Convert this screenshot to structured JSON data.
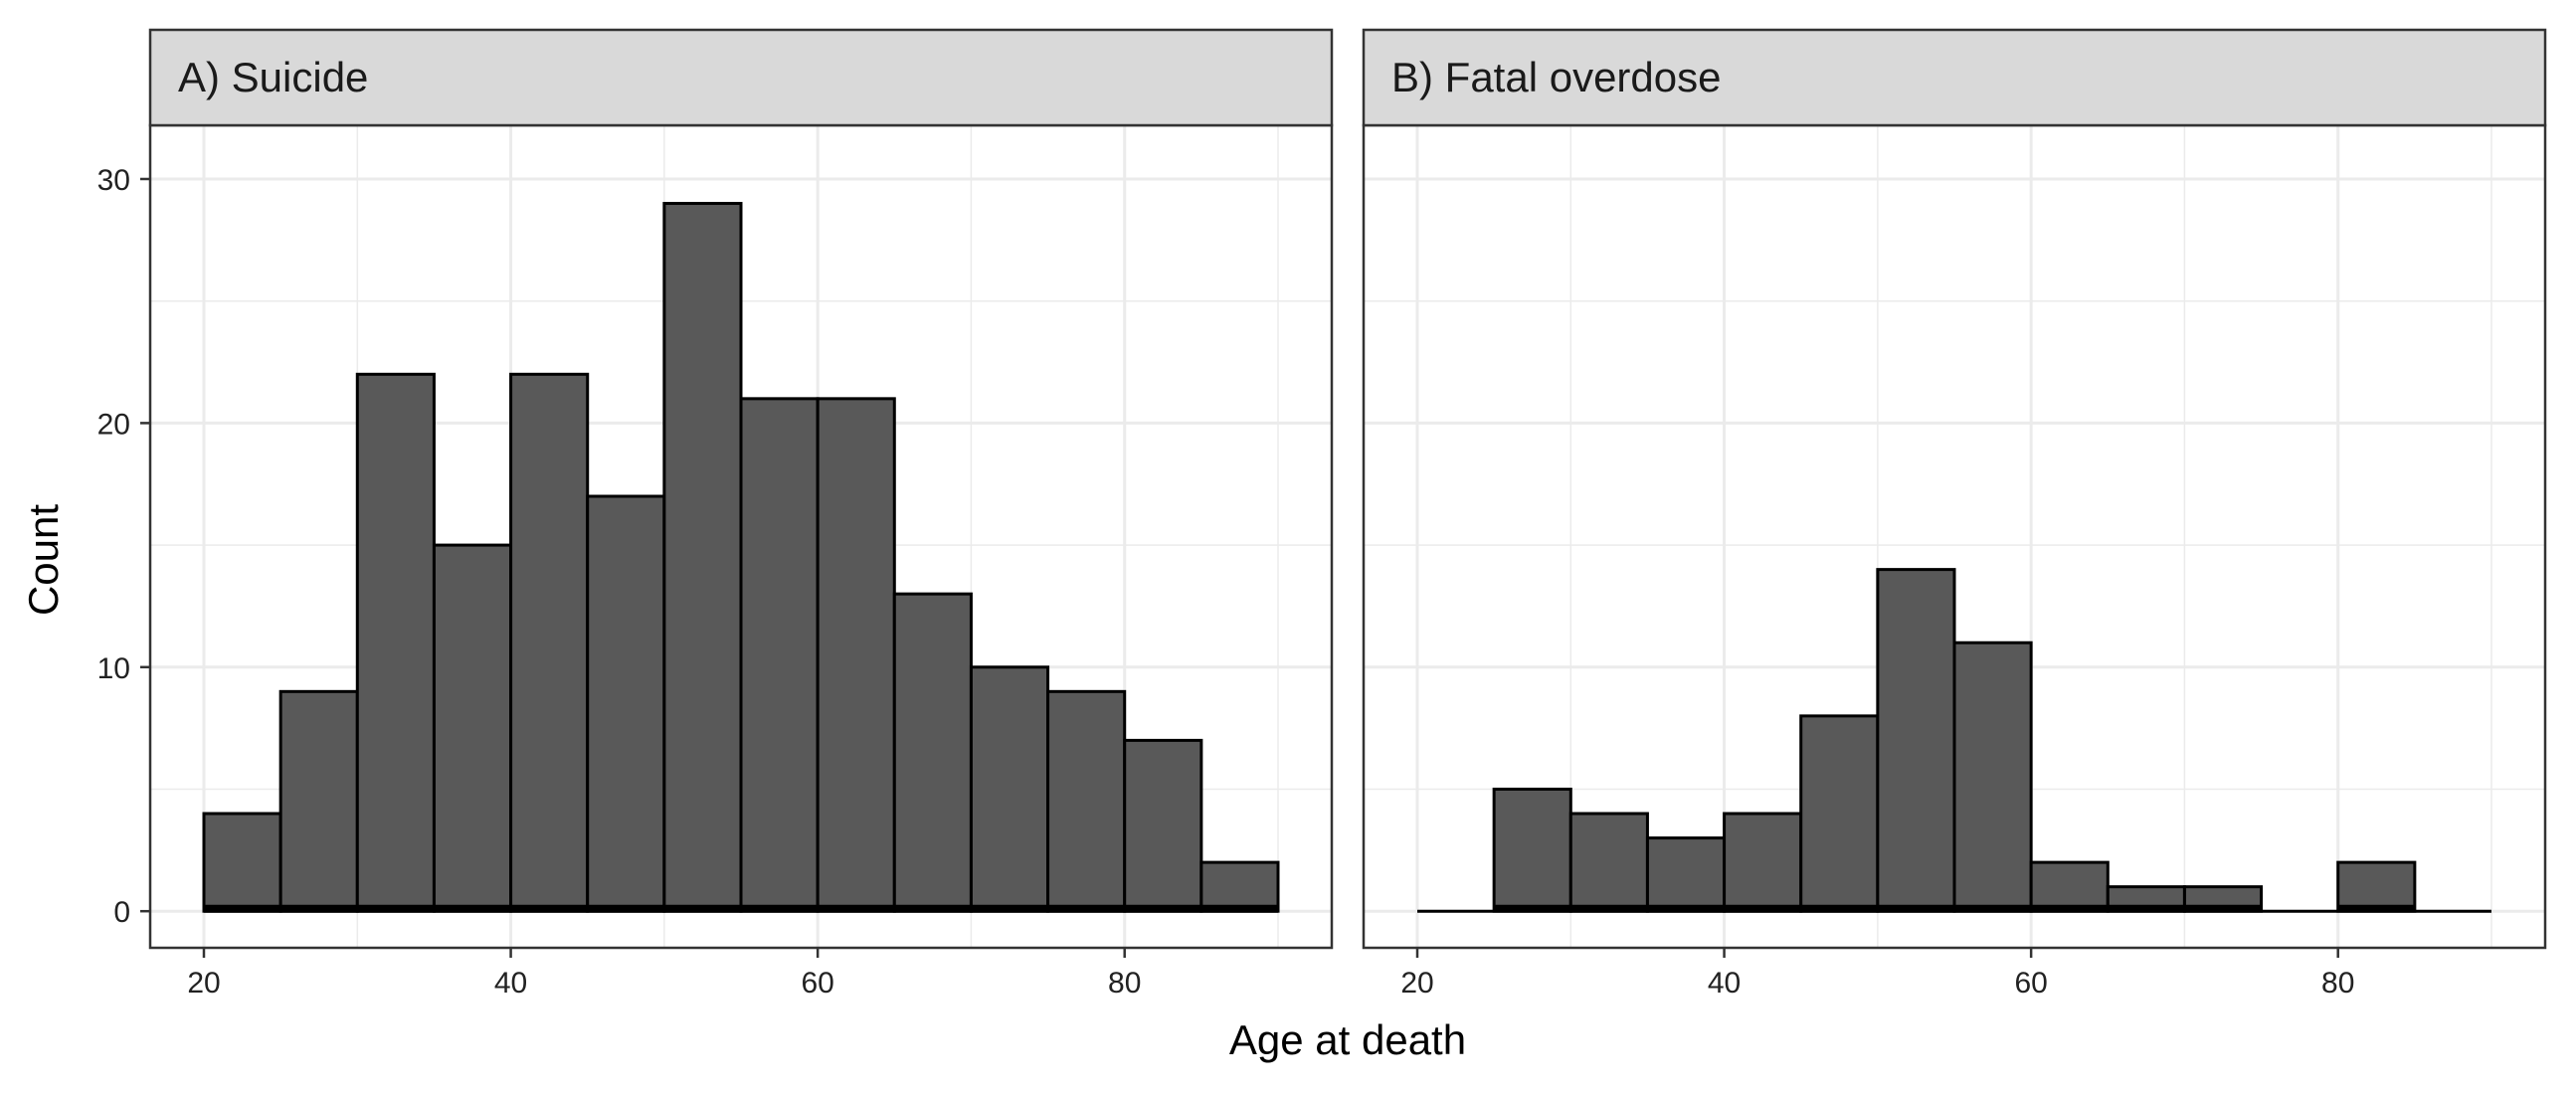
{
  "chart_data": {
    "type": "bar",
    "xlabel": "Age at death",
    "ylabel": "Count",
    "xlim": [
      16.5,
      93.5
    ],
    "ylim": [
      -1.5,
      32.2
    ],
    "x_ticks": [
      "20",
      "40",
      "60",
      "80"
    ],
    "y_ticks": [
      "0",
      "10",
      "20",
      "30"
    ],
    "x_tick_values": [
      20,
      40,
      60,
      80
    ],
    "y_tick_values": [
      0,
      10,
      20,
      30
    ],
    "bin_width": 5,
    "grid": true,
    "colors": {
      "fill": "#595959",
      "outline": "#000000",
      "panel_border": "#333333",
      "strip_fill": "#d9d9d9",
      "grid": "#ebebeb"
    },
    "panels": [
      {
        "title": "A) Suicide",
        "bins": [
          {
            "start": 20,
            "value": 4
          },
          {
            "start": 25,
            "value": 9
          },
          {
            "start": 30,
            "value": 22
          },
          {
            "start": 35,
            "value": 15
          },
          {
            "start": 40,
            "value": 22
          },
          {
            "start": 45,
            "value": 17
          },
          {
            "start": 50,
            "value": 29
          },
          {
            "start": 55,
            "value": 21
          },
          {
            "start": 60,
            "value": 21
          },
          {
            "start": 65,
            "value": 13
          },
          {
            "start": 70,
            "value": 10
          },
          {
            "start": 75,
            "value": 9
          },
          {
            "start": 80,
            "value": 7
          },
          {
            "start": 85,
            "value": 2
          }
        ]
      },
      {
        "title": "B) Fatal overdose",
        "bins": [
          {
            "start": 20,
            "value": 0
          },
          {
            "start": 25,
            "value": 5
          },
          {
            "start": 30,
            "value": 4
          },
          {
            "start": 35,
            "value": 3
          },
          {
            "start": 40,
            "value": 4
          },
          {
            "start": 45,
            "value": 8
          },
          {
            "start": 50,
            "value": 14
          },
          {
            "start": 55,
            "value": 11
          },
          {
            "start": 60,
            "value": 2
          },
          {
            "start": 65,
            "value": 1
          },
          {
            "start": 70,
            "value": 1
          },
          {
            "start": 75,
            "value": 0
          },
          {
            "start": 80,
            "value": 2
          },
          {
            "start": 85,
            "value": 0
          }
        ]
      }
    ]
  }
}
